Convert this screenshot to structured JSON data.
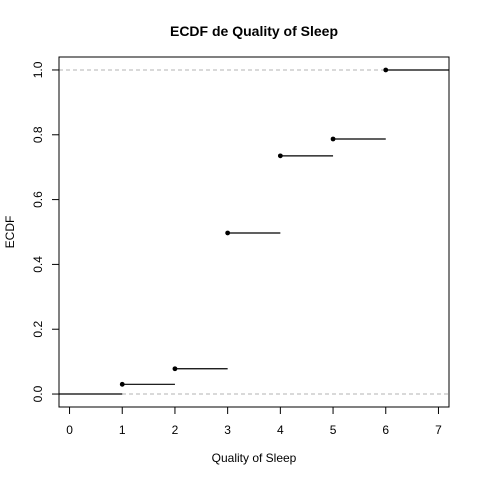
{
  "chart_data": {
    "type": "step",
    "title": "ECDF de Quality of Sleep",
    "xlabel": "Quality of Sleep",
    "ylabel": "ECDF",
    "xlim": [
      -0.2,
      7.2
    ],
    "ylim": [
      -0.04,
      1.04
    ],
    "x_ticks": [
      "0",
      "1",
      "2",
      "3",
      "4",
      "5",
      "6",
      "7"
    ],
    "y_ticks": [
      "0.0",
      "0.2",
      "0.4",
      "0.6",
      "0.8",
      "1.0"
    ],
    "reference_lines": [
      0,
      1
    ],
    "steps": [
      {
        "x": 1,
        "y": 0.03
      },
      {
        "x": 2,
        "y": 0.078
      },
      {
        "x": 3,
        "y": 0.497
      },
      {
        "x": 4,
        "y": 0.735
      },
      {
        "x": 5,
        "y": 0.787
      },
      {
        "x": 6,
        "y": 1.0
      }
    ],
    "grid": false,
    "legend": "none"
  }
}
